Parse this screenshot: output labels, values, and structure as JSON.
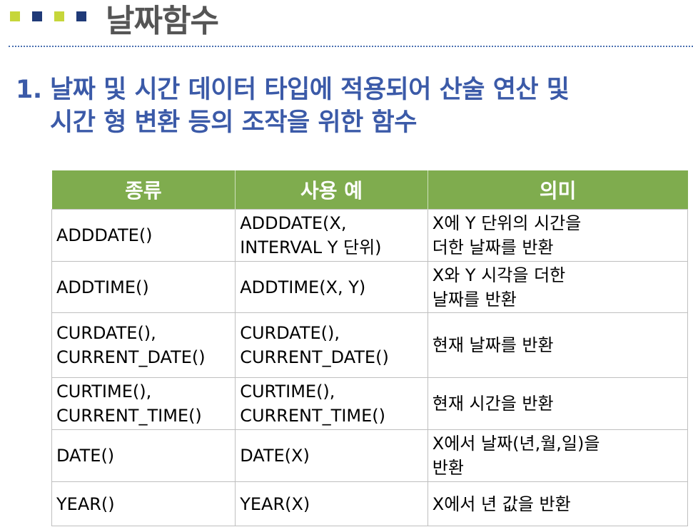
{
  "header": {
    "title": "날짜함수",
    "square_colors": [
      "#c6d63a",
      "#1f3a78",
      "#c6d63a",
      "#1f3a78"
    ]
  },
  "heading": {
    "number": "1.",
    "line1": "날짜 및 시간 데이터 타입에 적용되어 산술 연산 및",
    "line2": "시간 형 변환 등의 조작을 위한 함수"
  },
  "table": {
    "headers": [
      "종류",
      "사용 예",
      "의미"
    ],
    "rows": [
      {
        "kind": [
          "ADDDATE()"
        ],
        "example": [
          "ADDDATE(X,",
          "INTERVAL Y 단위)"
        ],
        "meaning": [
          "X에 Y 단위의 시간을",
          "더한 날짜를 반환"
        ]
      },
      {
        "kind": [
          "ADDTIME()"
        ],
        "example": [
          "ADDTIME(X, Y)"
        ],
        "meaning": [
          "X와 Y 시각을 더한",
          "날짜를 반환"
        ]
      },
      {
        "kind": [
          "CURDATE(),",
          "CURRENT_DATE()"
        ],
        "example": [
          "CURDATE(),",
          "CURRENT_DATE()"
        ],
        "meaning": [
          "현재 날짜를 반환"
        ]
      },
      {
        "kind": [
          "CURTIME(),",
          "CURRENT_TIME()"
        ],
        "example": [
          "CURTIME(),",
          "CURRENT_TIME()"
        ],
        "meaning": [
          "현재 시간을 반환"
        ]
      },
      {
        "kind": [
          "DATE()"
        ],
        "example": [
          "DATE(X)"
        ],
        "meaning": [
          "X에서 날짜(년,월,일)을",
          "반환"
        ]
      },
      {
        "kind": [
          "YEAR()"
        ],
        "example": [
          "YEAR(X)"
        ],
        "meaning": [
          "X에서 년 값을 반환"
        ]
      }
    ],
    "colors": {
      "header_bg": "#7fac4e",
      "border": "#bfbfbf"
    }
  }
}
